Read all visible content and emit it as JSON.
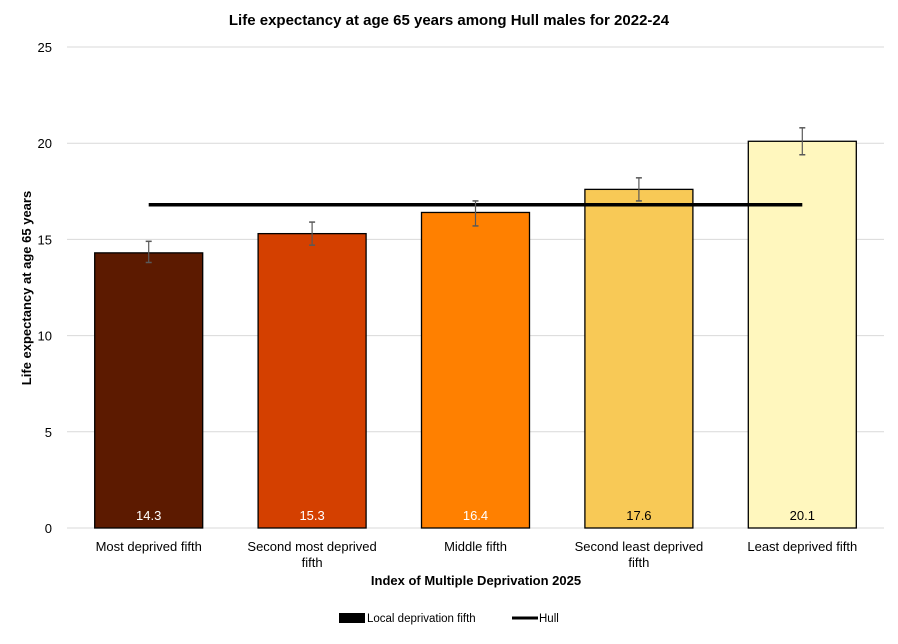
{
  "chart_data": {
    "type": "bar",
    "title": "Life expectancy at age 65 years among Hull males for 2022-24",
    "xlabel": "Index of Multiple Deprivation 2025",
    "ylabel": "Life expectancy at age 65 years",
    "ylim": [
      0,
      25
    ],
    "yticks": [
      0,
      5,
      10,
      15,
      20,
      25
    ],
    "grid": true,
    "legend_position": "bottom",
    "categories": [
      [
        "Most deprived fifth"
      ],
      [
        "Second most deprived",
        "fifth"
      ],
      [
        "Middle fifth"
      ],
      [
        "Second least deprived",
        "fifth"
      ],
      [
        "Least deprived fifth"
      ]
    ],
    "series": [
      {
        "name": "Local deprivation fifth",
        "type": "bar",
        "values": [
          14.3,
          15.3,
          16.4,
          17.6,
          20.1
        ],
        "data_labels": [
          "14.3",
          "15.3",
          "16.4",
          "17.6",
          "20.1"
        ],
        "error_low": [
          13.8,
          14.7,
          15.7,
          17.0,
          19.4
        ],
        "error_high": [
          14.9,
          15.9,
          17.0,
          18.2,
          20.8
        ],
        "colors": [
          "#5c1a00",
          "#d44000",
          "#ff8000",
          "#f8c956",
          "#fff7be"
        ],
        "label_colors": [
          "#ffffff",
          "#ffffff",
          "#ffffff",
          "#000000",
          "#000000"
        ]
      },
      {
        "name": "Hull",
        "type": "line",
        "value": 16.8,
        "color": "#000000"
      }
    ]
  }
}
